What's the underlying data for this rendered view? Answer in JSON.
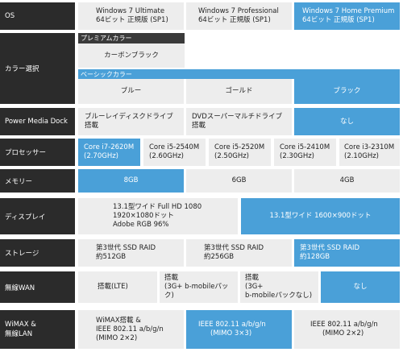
{
  "os": {
    "label": "OS",
    "options": [
      {
        "line1": "Windows 7 Ultimate",
        "line2": "64ビット 正規版 (SP1)"
      },
      {
        "line1": "Windows 7 Professional",
        "line2": "64ビット 正規版 (SP1)"
      },
      {
        "line1": "Windows 7 Home Premium",
        "line2": "64ビット 正規版 (SP1)"
      }
    ]
  },
  "color": {
    "label": "カラー選択",
    "premium_header": "プレミアムカラー",
    "premium_option": "カーボンブラック",
    "basic_header": "ベーシックカラー",
    "basic_options": [
      "ブルー",
      "ゴールド",
      "ブラック"
    ]
  },
  "dock": {
    "label": "Power Media Dock",
    "options": [
      {
        "line1": "ブルーレイディスクドライブ",
        "line2": "搭載"
      },
      {
        "line1": "DVDスーパーマルチドライブ",
        "line2": "搭載"
      },
      {
        "line1": "なし",
        "line2": ""
      }
    ]
  },
  "cpu": {
    "label": "プロセッサー",
    "options": [
      {
        "line1": "Core i7-2620M",
        "line2": "(2.70GHz)"
      },
      {
        "line1": "Core i5-2540M",
        "line2": "(2.60GHz)"
      },
      {
        "line1": "Core i5-2520M",
        "line2": "(2.50GHz)"
      },
      {
        "line1": "Core i5-2410M",
        "line2": "(2.30GHz)"
      },
      {
        "line1": "Core i3-2310M",
        "line2": "(2.10GHz)"
      }
    ]
  },
  "memory": {
    "label": "メモリー",
    "options": [
      "8GB",
      "6GB",
      "4GB"
    ]
  },
  "display": {
    "label": "ディスプレイ",
    "options": [
      {
        "line1": "13.1型ワイド Full HD 1080",
        "line2": "1920×1080ドット",
        "line3": "Adobe RGB 96%"
      },
      {
        "line1": "13.1型ワイド 1600×900ドット",
        "line2": "",
        "line3": ""
      }
    ]
  },
  "storage": {
    "label": "ストレージ",
    "options": [
      {
        "line1": "第3世代 SSD RAID",
        "line2": "約512GB"
      },
      {
        "line1": "第3世代 SSD RAID",
        "line2": "約256GB"
      },
      {
        "line1": "第3世代 SSD RAID",
        "line2": "約128GB"
      }
    ]
  },
  "wan": {
    "label": "無線WAN",
    "options": [
      {
        "line1": "搭載(LTE)",
        "line2": ""
      },
      {
        "line1": "搭載",
        "line2": "(3G+ b-mobileパック)"
      },
      {
        "line1": "搭載",
        "line2": "(3G+",
        "line3": "b-mobileパックなし)"
      },
      {
        "line1": "なし",
        "line2": ""
      }
    ]
  },
  "wimax": {
    "label_line1": "WiMAX &",
    "label_line2": "無線LAN",
    "options": [
      {
        "line1": "WiMAX搭載 &",
        "line2": "IEEE 802.11 a/b/g/n",
        "line3": "(MIMO 2×2)"
      },
      {
        "line1": "IEEE 802.11 a/b/g/n",
        "line2": "(MIMO 3×3)"
      },
      {
        "line1": "IEEE 802.11 a/b/g/n",
        "line2": "(MIMO 2×2)"
      }
    ]
  }
}
